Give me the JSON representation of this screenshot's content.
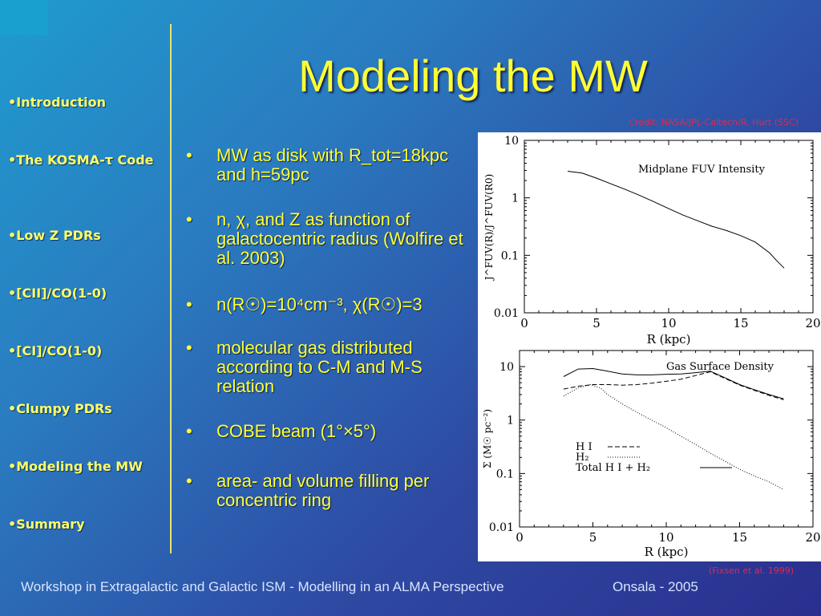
{
  "title": "Modeling the MW",
  "credit_top": "Credit: NASA/JPL-Caltech/R. Hurt (SSC)",
  "credit_bottom": "(Fixsen et al. 1999)",
  "sidebar": {
    "items": [
      {
        "label": "Introduction"
      },
      {
        "label": "The KOSMA-τ Code"
      },
      {
        "label": "Low Z PDRs"
      },
      {
        "label": "[CII]/CO(1-0)"
      },
      {
        "label": "[CI]/CO(1-0)"
      },
      {
        "label": "Clumpy PDRs"
      },
      {
        "label": "Modeling the MW"
      },
      {
        "label": "Summary"
      }
    ]
  },
  "bullets": [
    {
      "text": "MW as disk with R_tot=18kpc and h=59pc"
    },
    {
      "text": "n, χ, and Z as function of galactocentric radius (Wolfire et al. 2003)"
    },
    {
      "text": "n(R☉)=10⁴cm⁻³, χ(R☉)=3"
    },
    {
      "text": "molecular gas distributed according to C-M and M-S relation"
    },
    {
      "text": "COBE beam (1°×5°)"
    },
    {
      "text": "area- and volume filling per concentric ring"
    }
  ],
  "footer": {
    "left": "Workshop in Extragalactic and Galactic ISM - Modelling in an ALMA Perspective",
    "right": "Onsala - 2005"
  },
  "chart_data": [
    {
      "type": "line",
      "title": "Midplane FUV Intensity",
      "xlabel": "R (kpc)",
      "ylabel": "J^FUV(R)/J^FUV(R0)",
      "xlim": [
        0,
        20
      ],
      "ylim": [
        0.01,
        10
      ],
      "yscale": "log",
      "xticks": [
        "0",
        "5",
        "10",
        "15",
        "20"
      ],
      "yticks": [
        "0.01",
        "0.1",
        "1",
        "10"
      ],
      "series": [
        {
          "values": [
            [
              3,
              2.9
            ],
            [
              4,
              2.7
            ],
            [
              5,
              2.2
            ],
            [
              6,
              1.75
            ],
            [
              7,
              1.4
            ],
            [
              8,
              1.1
            ],
            [
              9,
              0.85
            ],
            [
              10,
              0.65
            ],
            [
              11,
              0.5
            ],
            [
              12,
              0.4
            ],
            [
              13,
              0.32
            ],
            [
              14,
              0.27
            ],
            [
              15,
              0.22
            ],
            [
              16,
              0.17
            ],
            [
              17,
              0.11
            ],
            [
              17.5,
              0.08
            ],
            [
              18,
              0.06
            ]
          ]
        }
      ]
    },
    {
      "type": "line",
      "title": "Gas Surface Density",
      "xlabel": "R (kpc)",
      "ylabel": "Σ (M☉ pc⁻²)",
      "xlim": [
        0,
        20
      ],
      "ylim": [
        0.01,
        20
      ],
      "yscale": "log",
      "xticks": [
        "0",
        "5",
        "10",
        "15",
        "20"
      ],
      "yticks": [
        "0.01",
        "0.1",
        "1",
        "10"
      ],
      "legend": [
        "H I",
        "H₂",
        "Total H I + H₂"
      ],
      "series": [
        {
          "name": "H I",
          "style": "dashed",
          "values": [
            [
              3,
              3.8
            ],
            [
              4,
              4.3
            ],
            [
              5,
              4.6
            ],
            [
              6,
              4.6
            ],
            [
              7,
              4.5
            ],
            [
              8,
              4.6
            ],
            [
              9,
              4.9
            ],
            [
              10,
              5.3
            ],
            [
              11,
              5.8
            ],
            [
              12,
              6.8
            ],
            [
              13,
              8.0
            ],
            [
              14,
              6.0
            ],
            [
              15,
              4.5
            ],
            [
              16,
              3.6
            ],
            [
              17,
              2.9
            ],
            [
              18,
              2.4
            ]
          ]
        },
        {
          "name": "H₂",
          "style": "dotted",
          "values": [
            [
              3,
              2.8
            ],
            [
              4,
              4.0
            ],
            [
              4.8,
              4.6
            ],
            [
              5.5,
              4.0
            ],
            [
              6,
              3.0
            ],
            [
              7,
              2.0
            ],
            [
              8,
              1.4
            ],
            [
              9,
              1.0
            ],
            [
              10,
              0.72
            ],
            [
              11,
              0.5
            ],
            [
              12,
              0.35
            ],
            [
              13,
              0.24
            ],
            [
              14,
              0.17
            ],
            [
              15,
              0.12
            ],
            [
              16,
              0.09
            ],
            [
              17,
              0.07
            ],
            [
              18,
              0.05
            ]
          ]
        },
        {
          "name": "Total H I + H₂",
          "style": "solid",
          "values": [
            [
              3,
              6.5
            ],
            [
              4,
              9.0
            ],
            [
              5,
              9.2
            ],
            [
              6,
              8.2
            ],
            [
              7,
              7.3
            ],
            [
              8,
              7.0
            ],
            [
              9,
              7.0
            ],
            [
              10,
              7.2
            ],
            [
              11,
              7.3
            ],
            [
              12,
              7.7
            ],
            [
              13,
              8.2
            ],
            [
              14,
              6.2
            ],
            [
              15,
              4.6
            ],
            [
              16,
              3.7
            ],
            [
              17,
              3.0
            ],
            [
              18,
              2.5
            ]
          ]
        }
      ]
    }
  ]
}
